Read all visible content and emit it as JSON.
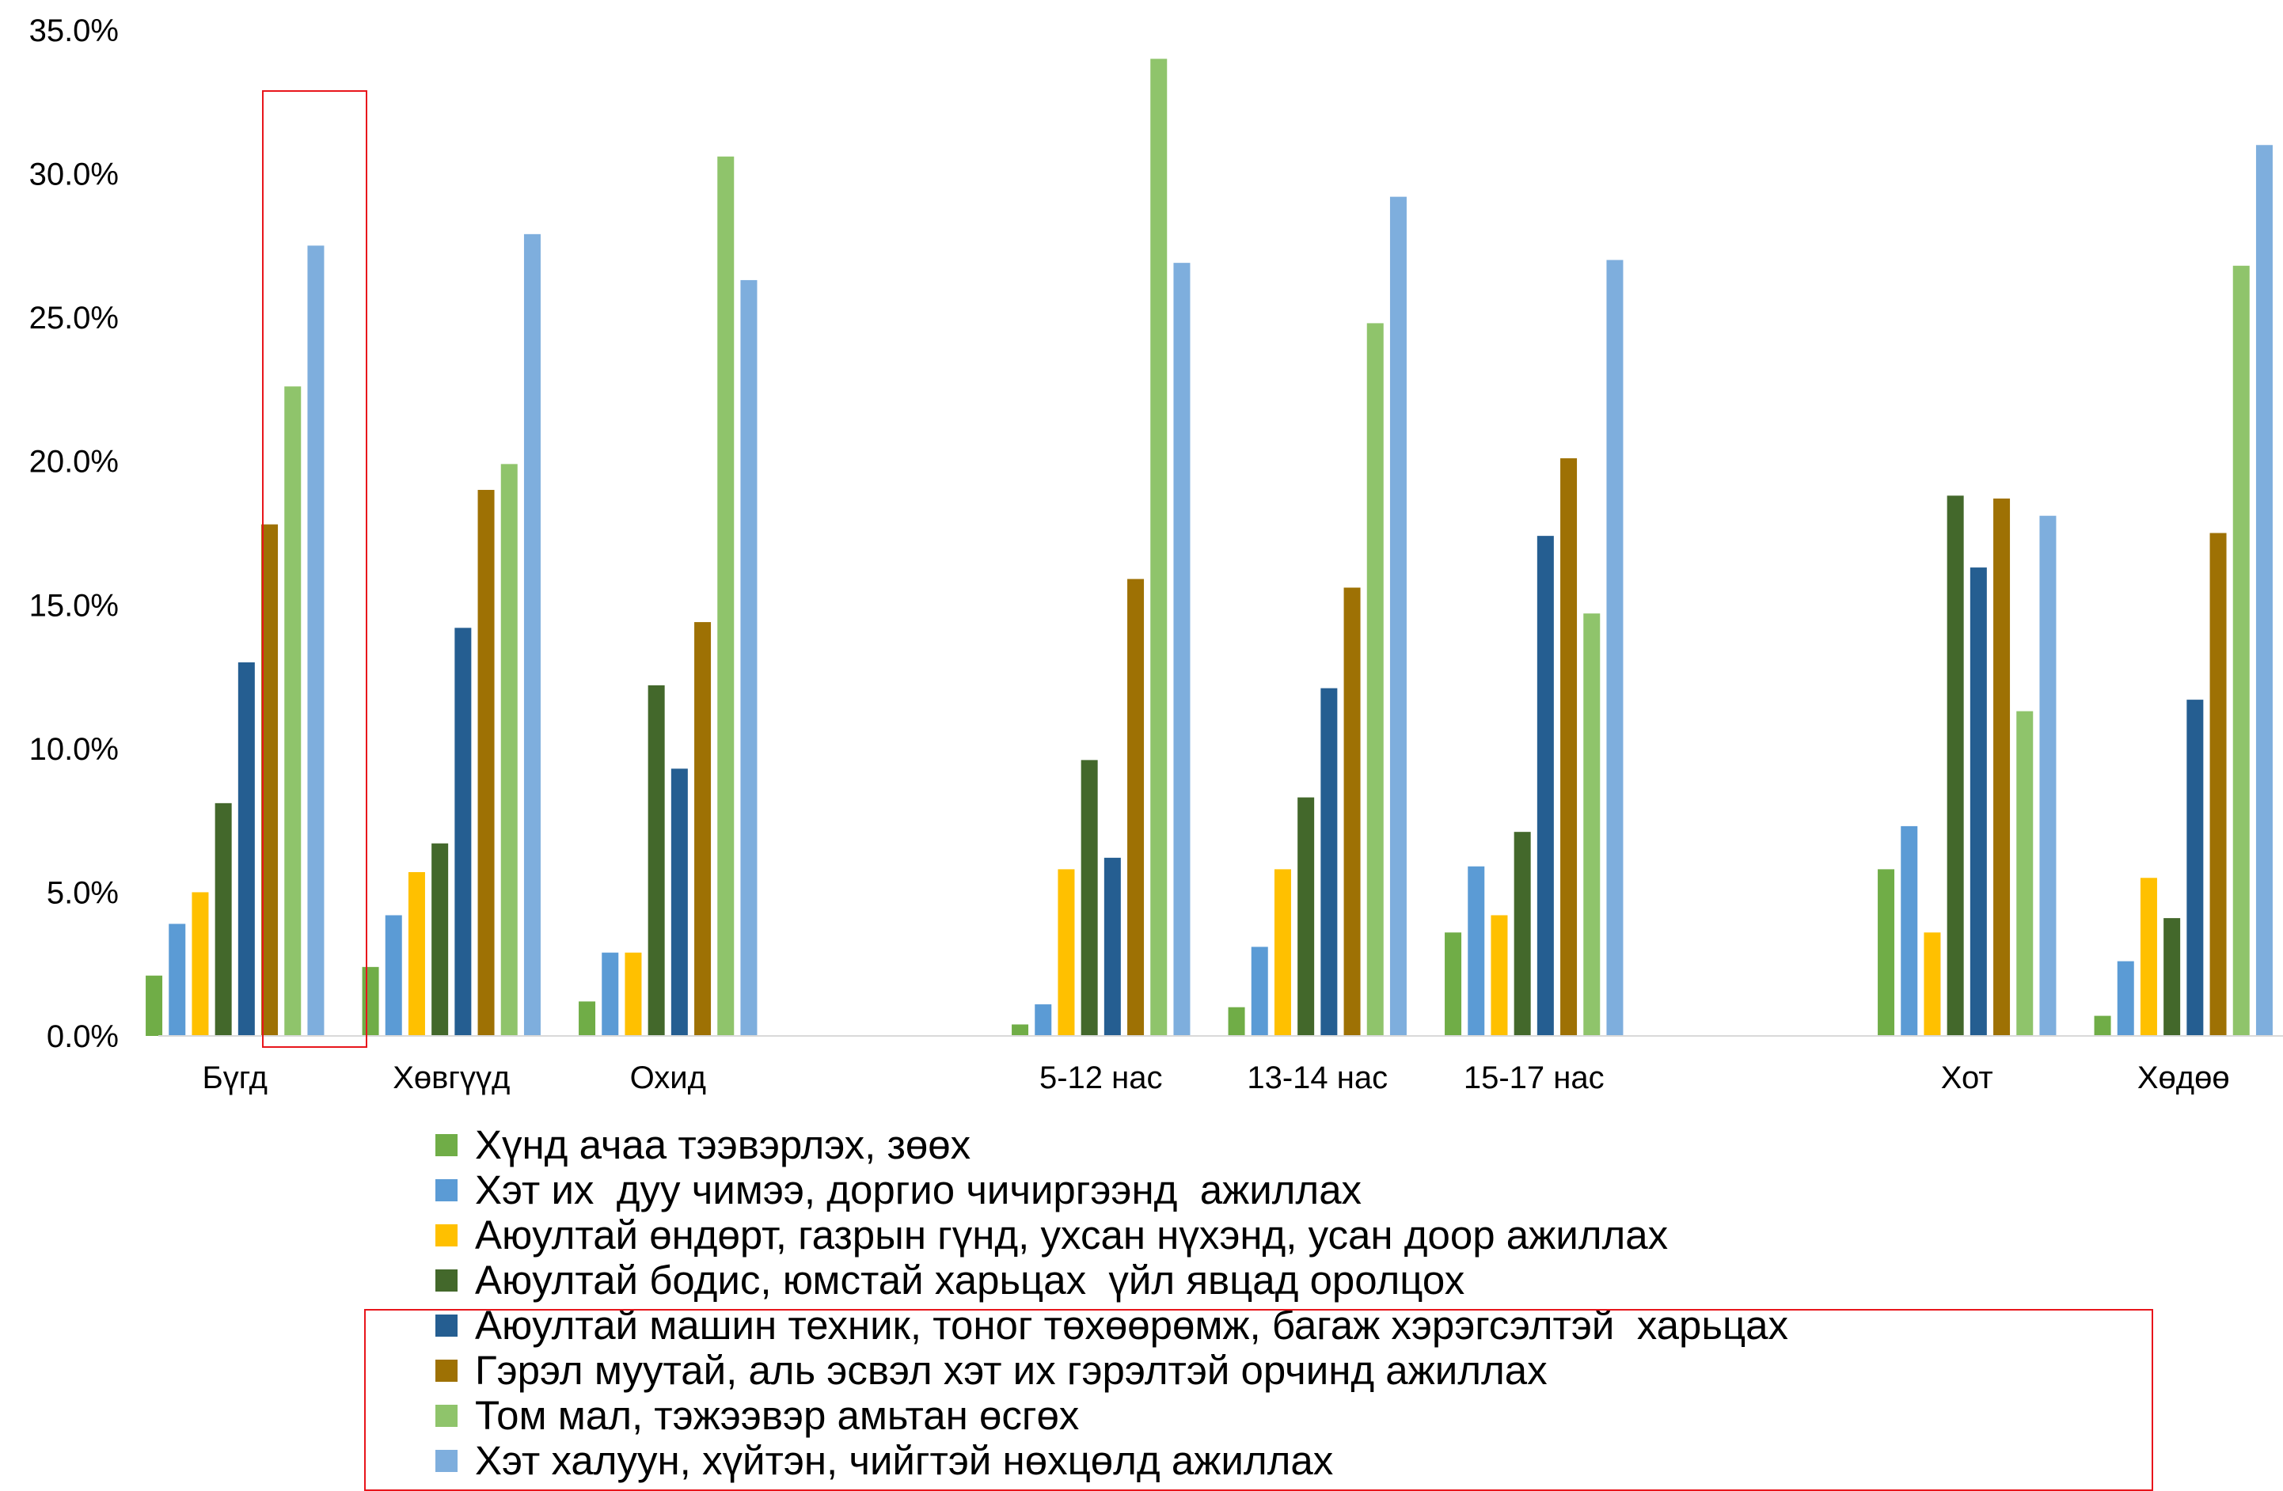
{
  "chart_data": {
    "type": "bar",
    "categories": [
      "Бүгд",
      "Хөвгүүд",
      "Охид",
      "",
      "5-12 нас",
      "13-14 нас",
      "15-17 нас",
      "",
      "Хот",
      "Хөдөө"
    ],
    "ylim": [
      0,
      35
    ],
    "y_ticks": [
      "0.0%",
      "5.0%",
      "10.0%",
      "15.0%",
      "20.0%",
      "25.0%",
      "30.0%",
      "35.0%"
    ],
    "grid": false,
    "legend_position": "bottom",
    "series": [
      {
        "name": "Хүнд ачаа тээвэрлэх, зөөх",
        "color": "#70ad47",
        "values": [
          2.1,
          2.4,
          1.2,
          null,
          0.4,
          1.0,
          3.6,
          null,
          5.8,
          0.7
        ]
      },
      {
        "name": "Хэт их  дуу чимээ, доргио чичиргээнд  ажиллах",
        "color": "#5b9bd5",
        "values": [
          3.9,
          4.2,
          2.9,
          null,
          1.1,
          3.1,
          5.9,
          null,
          7.3,
          2.6
        ]
      },
      {
        "name": "Аюултай өндөрт, газрын гүнд, ухсан нүхэнд, усан доор ажиллах",
        "color": "#ffc000",
        "values": [
          5.0,
          5.7,
          2.9,
          null,
          5.8,
          5.8,
          4.2,
          null,
          3.6,
          5.5
        ]
      },
      {
        "name": "Аюултай бодис, юмстай харьцах  үйл явцад оролцох",
        "color": "#43682b",
        "values": [
          8.1,
          6.7,
          12.2,
          null,
          9.6,
          8.3,
          7.1,
          null,
          18.8,
          4.1
        ]
      },
      {
        "name": "Аюултай машин техник, тоног төхөөрөмж, багаж хэрэгсэлтэй  харьцах",
        "color": "#255e91",
        "values": [
          13.0,
          14.2,
          9.3,
          null,
          6.2,
          12.1,
          17.4,
          null,
          16.3,
          11.7
        ]
      },
      {
        "name": "Гэрэл муутай, аль эсвэл хэт их гэрэлтэй орчинд ажиллах",
        "color": "#9e7104",
        "values": [
          17.8,
          19.0,
          14.4,
          null,
          15.9,
          15.6,
          20.1,
          null,
          18.7,
          17.5
        ]
      },
      {
        "name": "Том мал, тэжээвэр амьтан өсгөх",
        "color": "#8fc46b",
        "values": [
          22.6,
          19.9,
          30.6,
          null,
          34.0,
          24.8,
          14.7,
          null,
          11.3,
          26.8
        ]
      },
      {
        "name": "Хэт халуун, хүйтэн, чийгтэй нөхцөлд ажиллах",
        "color": "#7eaedd",
        "values": [
          27.5,
          27.9,
          26.3,
          null,
          26.9,
          29.2,
          27.0,
          null,
          18.1,
          31.0
        ]
      }
    ],
    "highlight_color": "#e8151b"
  }
}
